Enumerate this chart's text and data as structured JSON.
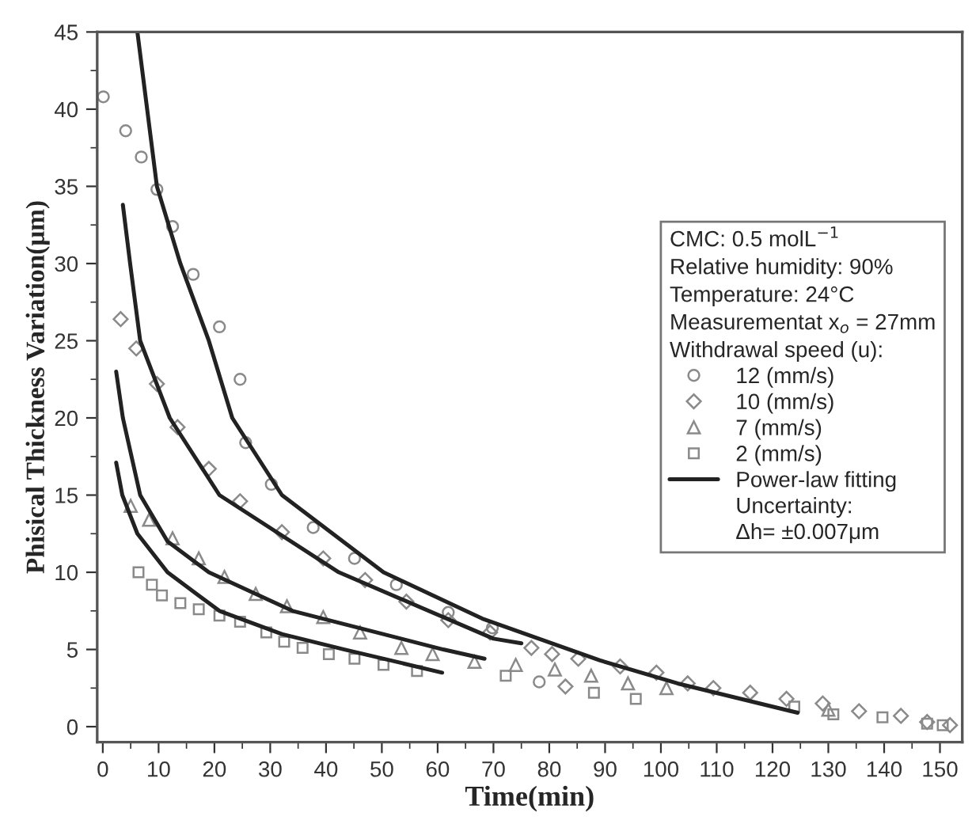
{
  "chart_data": {
    "type": "scatter",
    "xlabel": "Time(min)",
    "ylabel": "Phisical Thickness Variation(μm)",
    "legend_title": "CMC: 0.5 molL$^{−1}$\nRelative humidity: 90%\nTemperature: 24°C\nMeasurementat x$_{o}$ = 27mm\nWithdrawal speed (u):",
    "annotations": [
      "Uncertainty:",
      "Δh= ±0.007μm"
    ],
    "xlim": [
      -1,
      154
    ],
    "ylim": [
      -1,
      45
    ],
    "xticks": [
      0,
      10,
      20,
      30,
      40,
      50,
      60,
      70,
      80,
      90,
      100,
      110,
      120,
      130,
      140,
      150
    ],
    "yticks": [
      0,
      5,
      10,
      15,
      20,
      25,
      30,
      35,
      40,
      45
    ],
    "grid": false,
    "legend": "right",
    "series": [
      {
        "name": "12 (mm/s)",
        "marker": "circle",
        "color": "#8a8a8a",
        "x": [
          0.1,
          4.1,
          6.9,
          9.7,
          12.5,
          16.2,
          20.9,
          24.6,
          25.6,
          30.2,
          37.7,
          45.1,
          52.6,
          61.9,
          69.8,
          78.2
        ],
        "values": [
          40.8,
          38.6,
          36.9,
          34.8,
          32.4,
          29.3,
          25.9,
          22.5,
          18.4,
          15.7,
          12.9,
          10.9,
          9.2,
          7.4,
          6.4,
          2.9
        ]
      },
      {
        "name": "10 (mm/s)",
        "marker": "diamond",
        "color": "#8a8a8a",
        "x": [
          3.2,
          6,
          9.7,
          13.4,
          19,
          24.6,
          32.1,
          39.5,
          47,
          54.4,
          61.9,
          69.4,
          76.8,
          80.5,
          82.9,
          85.2,
          92.7,
          99.2,
          104.8,
          109.4,
          116,
          122.5,
          129,
          135.5,
          143,
          147.7,
          151.8
        ],
        "values": [
          26.4,
          24.5,
          22.2,
          19.4,
          16.7,
          14.6,
          12.6,
          10.9,
          9.5,
          8.1,
          6.9,
          6.1,
          5.1,
          4.7,
          2.6,
          4.4,
          3.9,
          3.5,
          2.8,
          2.5,
          2.2,
          1.8,
          1.5,
          1.0,
          0.7,
          0.3,
          0.1
        ]
      },
      {
        "name": "7 (mm/s)",
        "marker": "triangle",
        "color": "#8a8a8a",
        "x": [
          5,
          8.3,
          12.5,
          17.2,
          21.8,
          27.4,
          33,
          39.5,
          46.1,
          53.5,
          59.1,
          66.6,
          74,
          81,
          87.5,
          94.1,
          101,
          130
        ],
        "values": [
          14.3,
          13.4,
          12.2,
          10.9,
          9.7,
          8.6,
          7.8,
          7.1,
          6.1,
          5.1,
          4.7,
          4.2,
          4.0,
          3.7,
          3.3,
          2.8,
          2.5,
          1.1
        ]
      },
      {
        "name": "2 (mm/s)",
        "marker": "square",
        "color": "#8a8a8a",
        "x": [
          6.4,
          8.8,
          10.6,
          13.9,
          17.2,
          20.9,
          24.6,
          29.3,
          32.5,
          35.8,
          40.5,
          45.1,
          50.3,
          56.3,
          72.2,
          88,
          95.5,
          123.9,
          130.9,
          139.7,
          147.7,
          150.5
        ],
        "values": [
          10.0,
          9.2,
          8.5,
          8.0,
          7.6,
          7.2,
          6.8,
          6.1,
          5.5,
          5.1,
          4.7,
          4.4,
          4.0,
          3.6,
          3.3,
          2.2,
          1.8,
          1.3,
          0.8,
          0.6,
          0.2,
          0.1
        ]
      },
      {
        "name": "Power-law fitting",
        "type": "line",
        "color": "#222222",
        "x": [
          6.2,
          9.7,
          13.9,
          19,
          23.2,
          32.1,
          50.3,
          68,
          89,
          103,
          124.5
        ],
        "values": [
          45,
          35,
          30,
          25,
          20,
          15,
          10,
          7,
          4.3,
          2.8,
          0.9
        ]
      },
      {
        "type": "line",
        "color": "#222222",
        "x": [
          3.6,
          4.9,
          6.7,
          12,
          20.9,
          42.3,
          70,
          75
        ],
        "values": [
          33.8,
          30,
          25,
          20,
          15,
          10,
          5.7,
          5.4
        ]
      },
      {
        "type": "line",
        "color": "#222222",
        "x": [
          2.4,
          3.6,
          6.7,
          11.6,
          19,
          34,
          61,
          68.4
        ],
        "values": [
          23,
          20,
          15,
          12,
          10,
          7.5,
          5,
          4.4
        ]
      },
      {
        "type": "line",
        "color": "#222222",
        "x": [
          2.4,
          3.5,
          6.2,
          11.6,
          20.9,
          32.1,
          43.3,
          60.8
        ],
        "values": [
          17.1,
          15,
          12.5,
          10,
          7.5,
          6,
          5,
          3.5
        ]
      }
    ]
  }
}
